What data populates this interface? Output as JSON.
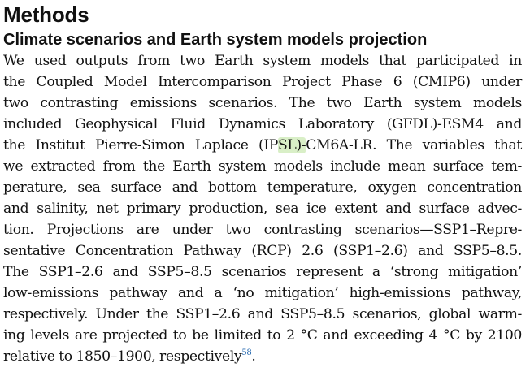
{
  "section_title": "Methods",
  "subsection_title": "Climate scenarios and Earth system models projection",
  "paragraph_lines": [
    "We used outputs from two Earth system models that participated in",
    "the Coupled Model Intercomparison Project Phase 6 (CMIP6) under",
    "two contrasting emissions scenarios. The two Earth system models",
    "included Geophysical Fluid Dynamics Laboratory (GFDL)-ESM4 and",
    {
      "before": "the Institut Pierre-Simon Laplace (IP",
      "highlight": "SL)-",
      "after": "CM6A-LR. The variables that"
    },
    "we extracted from the Earth system models include mean surface tem-",
    "perature, sea surface and bottom temperature, oxygen concentration",
    "and salinity, net primary production, sea ice extent and surface advec-",
    "tion. Projections are under two contrasting scenarios—SSP1–Repre-",
    "sentative Concentration Pathway (RCP) 2.6 (SSP1–2.6) and SSP5–8.5.",
    "The SSP1–2.6 and SSP5–8.5 scenarios represent a ‘strong mitigation’",
    "low-emissions pathway and a ‘no mitigation’ high-emissions pathway,",
    "respectively. Under the SSP1–2.6 and SSP5–8.5 scenarios, global warm-",
    "ing levels are projected to be limited to 2 °C and exceeding 4 °C by 2100",
    {
      "before": "relative to 1850–1900, respectively",
      "ref": "58",
      "after": "."
    }
  ]
}
